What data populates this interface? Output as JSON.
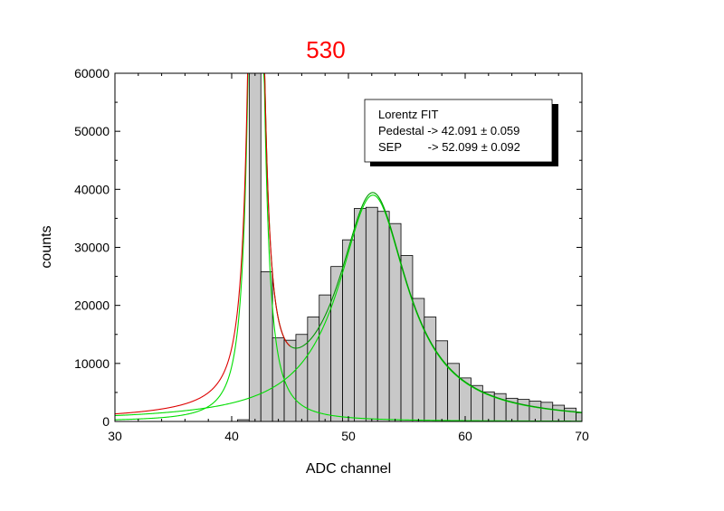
{
  "chart_data": {
    "type": "bar",
    "title": "530",
    "xlabel": "ADC channel",
    "ylabel": "counts",
    "xlim": [
      30,
      70
    ],
    "ylim": [
      0,
      60000
    ],
    "x_ticks": [
      30,
      40,
      50,
      60,
      70
    ],
    "y_ticks": [
      0,
      10000,
      20000,
      30000,
      40000,
      50000,
      60000
    ],
    "bin_width": 1,
    "bins": [
      {
        "x": 41,
        "value": 300
      },
      {
        "x": 42,
        "value": 60000
      },
      {
        "x": 43,
        "value": 25800
      },
      {
        "x": 44,
        "value": 14400
      },
      {
        "x": 45,
        "value": 14000
      },
      {
        "x": 46,
        "value": 15000
      },
      {
        "x": 47,
        "value": 18000
      },
      {
        "x": 48,
        "value": 21800
      },
      {
        "x": 49,
        "value": 26700
      },
      {
        "x": 50,
        "value": 31300
      },
      {
        "x": 51,
        "value": 36700
      },
      {
        "x": 52,
        "value": 36900
      },
      {
        "x": 53,
        "value": 36200
      },
      {
        "x": 54,
        "value": 34100
      },
      {
        "x": 55,
        "value": 28600
      },
      {
        "x": 56,
        "value": 21200
      },
      {
        "x": 57,
        "value": 18000
      },
      {
        "x": 58,
        "value": 13900
      },
      {
        "x": 59,
        "value": 10000
      },
      {
        "x": 60,
        "value": 7500
      },
      {
        "x": 61,
        "value": 6200
      },
      {
        "x": 62,
        "value": 5100
      },
      {
        "x": 63,
        "value": 4800
      },
      {
        "x": 64,
        "value": 4000
      },
      {
        "x": 65,
        "value": 3800
      },
      {
        "x": 66,
        "value": 3500
      },
      {
        "x": 67,
        "value": 3300
      },
      {
        "x": 68,
        "value": 2800
      },
      {
        "x": 69,
        "value": 2300
      },
      {
        "x": 70,
        "value": 1500
      }
    ],
    "fit_curves": [
      {
        "kind": "lorentz",
        "center": 42.091,
        "amplitude": 175000,
        "gamma": 0.5,
        "color": "#00dd00"
      },
      {
        "kind": "lorentz",
        "center": 52.099,
        "amplitude": 39000,
        "gamma": 3.6,
        "color": "#00dd00"
      },
      {
        "kind": "lorentz-sum",
        "centers": [
          42.091,
          52.099
        ],
        "amplitudes": [
          175000,
          39000
        ],
        "gammas": [
          0.5,
          3.6
        ],
        "color": "#009900",
        "x_from": 41.8
      },
      {
        "kind": "lorentz-sum",
        "centers": [
          42.091,
          52.099
        ],
        "amplitudes": [
          175000,
          39000
        ],
        "gammas": [
          0.5,
          3.6
        ],
        "color": "#dd0000",
        "x_to": 45
      }
    ],
    "annotation": {
      "lines": [
        "Lorentz FIT",
        "Pedestal -> 42.091 ± 0.059",
        "SEP        -> 52.099 ± 0.092"
      ]
    },
    "colors": {
      "title": "#ff0000",
      "bar_fill": "#c8c8c8",
      "bar_stroke": "#000000"
    },
    "grid": false,
    "legend": "none"
  }
}
